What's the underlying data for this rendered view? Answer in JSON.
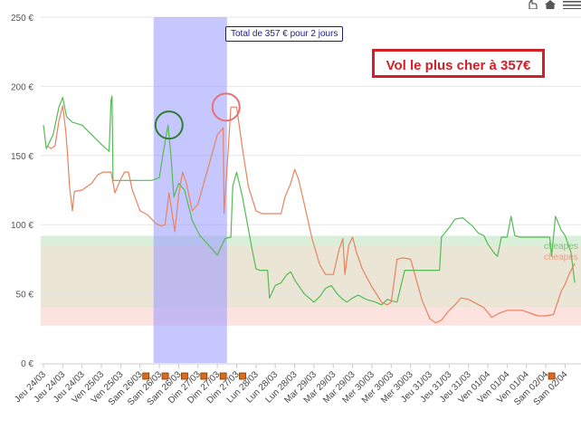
{
  "chart_data": {
    "type": "line",
    "yticks": [
      "0 €",
      "50 €",
      "100 €",
      "150 €",
      "200 €",
      "250 €"
    ],
    "ylim": [
      0,
      250
    ],
    "x_labels": [
      "Jeu 24/03",
      "Jeu 24/03",
      "Jeu 24/03",
      "Ven 25/03",
      "Ven 25/03",
      "Sam 26/03",
      "Sam 26/03",
      "Sam 26/03",
      "Dim 27/03",
      "Dim 27/03",
      "Dim 27/03",
      "Lun 28/03",
      "Lun 28/03",
      "Lun 28/03",
      "Mar 29/03",
      "Mar 29/03",
      "Mar 29/03",
      "Mer 30/03",
      "Mer 30/03",
      "Mer 30/03",
      "Jeu 31/03",
      "Jeu 31/03",
      "Jeu 31/03",
      "Ven 01/04",
      "Ven 01/04",
      "Ven 01/04",
      "Sam 02/04",
      "Sam 02/04"
    ],
    "x_range": [
      0,
      27.5
    ],
    "marked_labels": [
      5,
      6,
      7,
      8,
      9,
      10,
      26
    ],
    "bands": [
      {
        "from": 85,
        "to": 92,
        "color": "#d9efd9",
        "label": "cheapes",
        "label_color": "#7dc37d"
      },
      {
        "from": 40,
        "to": 85,
        "color": "#ebe5d5",
        "label": "cheapes",
        "label_color": "#e8a080"
      },
      {
        "from": 27,
        "to": 40,
        "color": "#fde3e0",
        "label": "",
        "label_color": ""
      }
    ],
    "highlight": {
      "x_from": 5.7,
      "x_to": 9.5,
      "color": "#9999ff"
    },
    "circles": [
      {
        "x": 6.5,
        "y": 172,
        "color": "#2e7d32"
      },
      {
        "x": 9.45,
        "y": 185,
        "color": "#e57373"
      }
    ],
    "series": [
      {
        "color": "#55bb55",
        "points": [
          [
            0,
            172
          ],
          [
            0.15,
            155
          ],
          [
            0.5,
            165
          ],
          [
            0.8,
            185
          ],
          [
            1.0,
            192
          ],
          [
            1.2,
            178
          ],
          [
            1.5,
            174
          ],
          [
            2.0,
            172
          ],
          [
            2.5,
            165
          ],
          [
            3.0,
            158
          ],
          [
            3.4,
            153
          ],
          [
            3.5,
            190
          ],
          [
            3.55,
            193
          ],
          [
            3.6,
            132
          ],
          [
            4.2,
            132
          ],
          [
            5.0,
            132
          ],
          [
            5.6,
            132
          ],
          [
            6.0,
            134
          ],
          [
            6.2,
            152
          ],
          [
            6.45,
            172
          ],
          [
            6.6,
            150
          ],
          [
            6.75,
            120
          ],
          [
            7.0,
            130
          ],
          [
            7.3,
            125
          ],
          [
            7.7,
            103
          ],
          [
            8.1,
            92
          ],
          [
            8.5,
            86
          ],
          [
            9.0,
            78
          ],
          [
            9.2,
            84
          ],
          [
            9.4,
            90
          ],
          [
            9.7,
            91
          ],
          [
            9.8,
            128
          ],
          [
            10.0,
            138
          ],
          [
            10.3,
            120
          ],
          [
            10.8,
            82
          ],
          [
            11.0,
            68
          ],
          [
            11.2,
            67
          ],
          [
            11.6,
            67
          ],
          [
            11.7,
            47
          ],
          [
            12.0,
            56
          ],
          [
            12.3,
            58
          ],
          [
            12.6,
            64
          ],
          [
            12.8,
            66
          ],
          [
            13.0,
            60
          ],
          [
            13.5,
            50
          ],
          [
            14.0,
            44
          ],
          [
            14.3,
            48
          ],
          [
            14.6,
            54
          ],
          [
            14.9,
            56
          ],
          [
            15.2,
            50
          ],
          [
            15.5,
            46
          ],
          [
            15.7,
            44
          ],
          [
            16.0,
            47
          ],
          [
            16.3,
            49
          ],
          [
            16.7,
            46
          ],
          [
            17.2,
            44
          ],
          [
            17.5,
            42
          ],
          [
            17.8,
            46
          ],
          [
            18.0,
            45
          ],
          [
            18.3,
            44
          ],
          [
            18.7,
            67
          ],
          [
            19.5,
            67
          ],
          [
            20.2,
            67
          ],
          [
            20.5,
            67
          ],
          [
            20.6,
            91
          ],
          [
            21.0,
            98
          ],
          [
            21.3,
            104
          ],
          [
            21.7,
            105
          ],
          [
            22.2,
            99
          ],
          [
            22.5,
            94
          ],
          [
            22.8,
            92
          ],
          [
            23.0,
            86
          ],
          [
            23.3,
            80
          ],
          [
            23.5,
            77
          ],
          [
            23.7,
            91
          ],
          [
            24.0,
            91
          ],
          [
            24.2,
            106
          ],
          [
            24.4,
            92
          ],
          [
            24.7,
            91
          ],
          [
            25.2,
            91
          ],
          [
            25.5,
            91
          ],
          [
            25.7,
            91
          ],
          [
            26.0,
            91
          ],
          [
            26.2,
            91
          ],
          [
            26.3,
            77
          ],
          [
            26.5,
            106
          ],
          [
            26.8,
            96
          ],
          [
            27.0,
            92
          ],
          [
            27.3,
            80
          ],
          [
            27.5,
            58
          ]
        ]
      },
      {
        "color": "#e8835f",
        "points": [
          [
            0.2,
            157
          ],
          [
            0.4,
            155
          ],
          [
            0.6,
            157
          ],
          [
            0.8,
            175
          ],
          [
            1.0,
            186
          ],
          [
            1.15,
            168
          ],
          [
            1.25,
            150
          ],
          [
            1.35,
            128
          ],
          [
            1.5,
            110
          ],
          [
            1.6,
            124
          ],
          [
            2.0,
            125
          ],
          [
            2.5,
            130
          ],
          [
            2.8,
            136
          ],
          [
            3.1,
            138
          ],
          [
            3.5,
            138
          ],
          [
            3.7,
            123
          ],
          [
            4.0,
            133
          ],
          [
            4.2,
            138
          ],
          [
            4.4,
            138
          ],
          [
            4.6,
            125
          ],
          [
            5.0,
            110
          ],
          [
            5.4,
            107
          ],
          [
            5.8,
            101
          ],
          [
            6.1,
            99
          ],
          [
            6.3,
            100
          ],
          [
            6.5,
            123
          ],
          [
            6.8,
            95
          ],
          [
            7.0,
            122
          ],
          [
            7.2,
            138
          ],
          [
            7.4,
            130
          ],
          [
            7.7,
            110
          ],
          [
            8.0,
            115
          ],
          [
            8.5,
            140
          ],
          [
            9.0,
            165
          ],
          [
            9.3,
            170
          ],
          [
            9.35,
            108
          ],
          [
            9.5,
            140
          ],
          [
            9.7,
            185
          ],
          [
            10.0,
            185
          ],
          [
            10.3,
            155
          ],
          [
            10.6,
            128
          ],
          [
            11.0,
            110
          ],
          [
            11.3,
            108
          ],
          [
            11.8,
            108
          ],
          [
            12.3,
            108
          ],
          [
            12.5,
            120
          ],
          [
            12.8,
            130
          ],
          [
            13.0,
            140
          ],
          [
            13.2,
            133
          ],
          [
            13.5,
            115
          ],
          [
            13.9,
            90
          ],
          [
            14.3,
            71
          ],
          [
            14.6,
            64
          ],
          [
            15.0,
            64
          ],
          [
            15.3,
            82
          ],
          [
            15.5,
            90
          ],
          [
            15.6,
            64
          ],
          [
            15.8,
            85
          ],
          [
            16.0,
            91
          ],
          [
            16.2,
            80
          ],
          [
            16.5,
            68
          ],
          [
            17.0,
            55
          ],
          [
            17.5,
            44
          ],
          [
            17.8,
            42
          ],
          [
            18.0,
            44
          ],
          [
            18.3,
            75
          ],
          [
            18.6,
            76
          ],
          [
            19.0,
            75
          ],
          [
            19.3,
            60
          ],
          [
            19.6,
            45
          ],
          [
            20.0,
            32
          ],
          [
            20.3,
            29
          ],
          [
            20.6,
            31
          ],
          [
            21.0,
            38
          ],
          [
            21.3,
            42
          ],
          [
            21.6,
            47
          ],
          [
            22.0,
            46
          ],
          [
            22.4,
            43
          ],
          [
            22.8,
            40
          ],
          [
            23.2,
            33
          ],
          [
            23.6,
            36
          ],
          [
            24.0,
            38
          ],
          [
            24.4,
            38
          ],
          [
            24.8,
            38
          ],
          [
            25.2,
            36
          ],
          [
            25.6,
            34
          ],
          [
            26.0,
            34
          ],
          [
            26.4,
            35
          ],
          [
            26.8,
            52
          ],
          [
            27.0,
            57
          ],
          [
            27.2,
            64
          ],
          [
            27.5,
            72
          ]
        ]
      }
    ]
  },
  "tooltip": {
    "text": "Total de 357 € pour 2 jours"
  },
  "callout": {
    "text": "Vol le plus cher à 357€"
  },
  "icons": {
    "hand": "hand-pointer-icon",
    "home": "home-icon",
    "menu": "menu-icon"
  }
}
